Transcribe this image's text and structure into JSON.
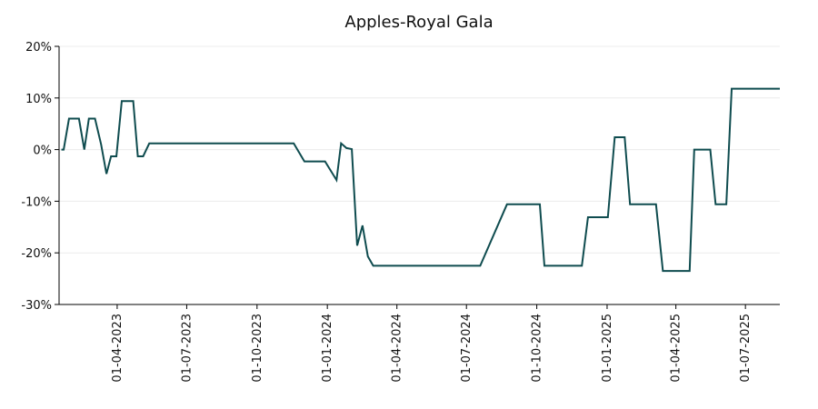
{
  "chart_data": {
    "type": "line",
    "title": "Apples-Royal Gala",
    "x": [
      "2023-01-18",
      "2023-01-21",
      "2023-01-28",
      "2023-02-10",
      "2023-02-17",
      "2023-02-23",
      "2023-03-03",
      "2023-03-11",
      "2023-03-18",
      "2023-03-24",
      "2023-03-31",
      "2023-04-07",
      "2023-04-22",
      "2023-04-28",
      "2023-05-05",
      "2023-05-13",
      "2023-11-18",
      "2023-12-02",
      "2023-12-29",
      "2024-01-13",
      "2024-01-19",
      "2024-01-26",
      "2024-02-02",
      "2024-02-09",
      "2024-02-16",
      "2024-02-23",
      "2024-03-01",
      "2024-07-19",
      "2024-08-23",
      "2024-10-05",
      "2024-10-11",
      "2024-11-29",
      "2024-12-07",
      "2025-01-02",
      "2025-01-11",
      "2025-01-24",
      "2025-01-31",
      "2025-03-06",
      "2025-03-15",
      "2025-04-19",
      "2025-04-25",
      "2025-05-16",
      "2025-05-23",
      "2025-06-06",
      "2025-06-13",
      "2025-08-15"
    ],
    "values": [
      0,
      0,
      6,
      6,
      0,
      6,
      6,
      1,
      -4.7,
      -1.3,
      -1.3,
      9.4,
      9.4,
      -1.3,
      -1.3,
      1.2,
      1.2,
      -2.3,
      -2.3,
      -5.9,
      1.2,
      0.3,
      0.1,
      -18.6,
      -14.7,
      -20.7,
      -22.5,
      -22.5,
      -10.6,
      -10.6,
      -22.5,
      -22.5,
      -13.1,
      -13.1,
      2.4,
      2.4,
      -10.6,
      -10.6,
      -23.5,
      -23.5,
      0,
      0,
      -10.6,
      -10.6,
      11.8,
      11.8
    ],
    "color": "#0f4c4f",
    "xlim": [
      "2023-01-15",
      "2025-08-15"
    ],
    "xticks": [
      {
        "value": "2023-04-01",
        "label": "01-04-2023"
      },
      {
        "value": "2023-07-01",
        "label": "01-07-2023"
      },
      {
        "value": "2023-10-01",
        "label": "01-10-2023"
      },
      {
        "value": "2024-01-01",
        "label": "01-01-2024"
      },
      {
        "value": "2024-04-01",
        "label": "01-04-2024"
      },
      {
        "value": "2024-07-01",
        "label": "01-07-2024"
      },
      {
        "value": "2024-10-01",
        "label": "01-10-2024"
      },
      {
        "value": "2025-01-01",
        "label": "01-01-2025"
      },
      {
        "value": "2025-04-01",
        "label": "01-04-2025"
      },
      {
        "value": "2025-07-01",
        "label": "01-07-2025"
      }
    ],
    "ylim": [
      -30,
      20
    ],
    "yticks": [
      {
        "value": -30,
        "label": "-30%"
      },
      {
        "value": -20,
        "label": "-20%"
      },
      {
        "value": -10,
        "label": "-10%"
      },
      {
        "value": 0,
        "label": "0%"
      },
      {
        "value": 10,
        "label": "10%"
      },
      {
        "value": 20,
        "label": "20%"
      }
    ],
    "grid": true
  }
}
